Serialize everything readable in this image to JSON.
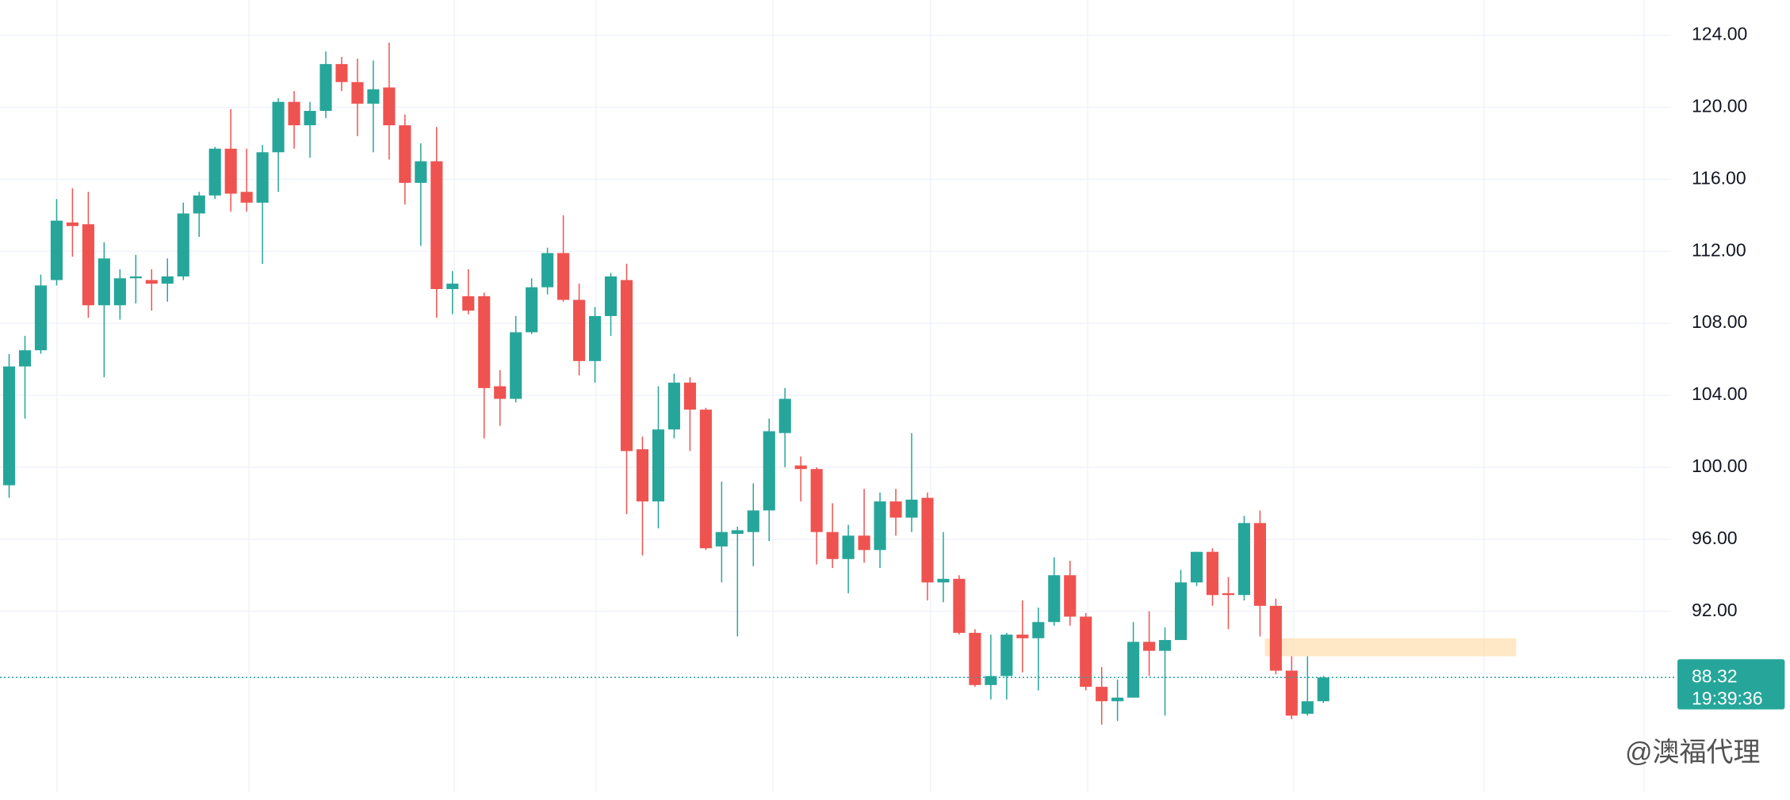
{
  "chart_data": {
    "type": "candlestick",
    "open": [
      99.0,
      105.6,
      106.5,
      110.4,
      113.6,
      113.5,
      109.0,
      109.0,
      110.5,
      110.4,
      110.2,
      110.6,
      114.1,
      115.1,
      117.7,
      115.3,
      114.7,
      117.5,
      120.3,
      119.0,
      119.8,
      122.4,
      121.4,
      120.2,
      121.1,
      119.0,
      115.8,
      117.0,
      109.9,
      109.5,
      109.5,
      104.5,
      103.8,
      107.5,
      110.0,
      111.9,
      109.3,
      105.9,
      108.4,
      110.4,
      101.0,
      98.1,
      102.1,
      104.7,
      103.2,
      95.6,
      96.3,
      96.4,
      97.6,
      101.9,
      100.1,
      99.9,
      96.4,
      94.9,
      96.2,
      95.4,
      98.1,
      97.2,
      98.3,
      93.6,
      93.8,
      90.8,
      87.9,
      88.4,
      90.7,
      90.5,
      91.4,
      94.0,
      91.7,
      87.8,
      87.0,
      87.2,
      90.3,
      89.8,
      90.4,
      93.6,
      95.3,
      93.0,
      92.9,
      96.9,
      92.3,
      88.7,
      86.3,
      87.0
    ],
    "high": [
      106.3,
      107.3,
      110.7,
      114.9,
      115.5,
      115.3,
      112.5,
      111.0,
      111.8,
      111.0,
      111.6,
      114.7,
      115.3,
      117.8,
      119.9,
      117.7,
      117.9,
      120.5,
      120.9,
      120.3,
      123.1,
      122.8,
      122.7,
      122.6,
      123.6,
      119.6,
      118.0,
      118.9,
      110.9,
      111.0,
      109.7,
      105.4,
      108.4,
      110.5,
      112.2,
      114.0,
      110.2,
      108.9,
      110.8,
      111.3,
      101.7,
      104.5,
      105.2,
      105.0,
      103.3,
      99.2,
      96.7,
      99.1,
      102.7,
      104.4,
      100.6,
      100.0,
      98.0,
      96.8,
      98.8,
      98.6,
      98.8,
      101.9,
      98.6,
      96.4,
      94.0,
      91.0,
      90.7,
      90.8,
      92.6,
      92.2,
      95.0,
      94.8,
      91.9,
      88.9,
      88.2,
      91.4,
      92.0,
      91.1,
      94.3,
      95.3,
      95.5,
      93.9,
      97.3,
      97.6,
      92.7,
      89.5,
      89.5,
      88.4
    ],
    "low": [
      98.3,
      102.7,
      106.3,
      110.1,
      111.7,
      108.3,
      105.0,
      108.2,
      109.1,
      108.7,
      109.2,
      110.4,
      112.8,
      114.9,
      114.2,
      114.2,
      111.3,
      115.3,
      117.7,
      117.2,
      119.4,
      120.9,
      118.4,
      117.5,
      117.1,
      114.6,
      112.3,
      108.3,
      108.5,
      108.5,
      101.6,
      102.3,
      103.6,
      107.4,
      109.6,
      109.2,
      105.1,
      104.7,
      107.3,
      97.4,
      95.1,
      96.6,
      101.6,
      100.9,
      95.4,
      93.6,
      90.6,
      94.5,
      95.9,
      100.0,
      98.1,
      94.6,
      94.4,
      93.0,
      94.7,
      94.4,
      96.2,
      96.4,
      92.6,
      92.5,
      90.7,
      87.8,
      87.1,
      87.1,
      88.6,
      87.6,
      91.2,
      91.2,
      87.6,
      85.7,
      85.9,
      87.2,
      88.4,
      86.2,
      90.4,
      93.4,
      92.3,
      91.0,
      92.6,
      90.6,
      88.5,
      86.0,
      86.2,
      86.9
    ],
    "close": [
      105.6,
      106.5,
      110.1,
      113.7,
      113.4,
      109.0,
      111.6,
      110.5,
      110.6,
      110.2,
      110.6,
      114.1,
      115.1,
      117.7,
      115.2,
      114.7,
      117.5,
      120.3,
      119.0,
      119.8,
      122.4,
      121.4,
      120.2,
      121.0,
      119.0,
      115.8,
      117.0,
      109.9,
      110.2,
      108.7,
      104.4,
      103.8,
      107.5,
      110.0,
      111.9,
      109.3,
      105.9,
      108.4,
      110.6,
      100.9,
      98.1,
      102.1,
      104.7,
      103.2,
      95.5,
      96.4,
      96.5,
      97.6,
      102.0,
      103.8,
      99.9,
      96.4,
      94.9,
      96.2,
      95.4,
      98.1,
      97.2,
      98.2,
      93.6,
      93.8,
      90.8,
      87.9,
      88.4,
      90.7,
      90.5,
      91.4,
      94.0,
      91.7,
      87.8,
      87.0,
      87.2,
      90.3,
      89.8,
      90.4,
      93.6,
      95.3,
      92.9,
      92.9,
      96.9,
      92.3,
      88.7,
      86.2,
      87.0,
      88.32
    ],
    "up_color": "#26a69a",
    "down_color": "#ef5350",
    "countdown": "19:39:36",
    "zone": {
      "low": 89.5,
      "high": 90.5,
      "color": "#ffe0b2"
    },
    "ylim": [
      81.6,
      125.96
    ],
    "yticks": [
      {
        "value": 124,
        "label": "124.00"
      },
      {
        "value": 120,
        "label": "120.00"
      },
      {
        "value": 116,
        "label": "116.00"
      },
      {
        "value": 112,
        "label": "112.00"
      },
      {
        "value": 108,
        "label": "108.00"
      },
      {
        "value": 104,
        "label": "104.00"
      },
      {
        "value": 100,
        "label": "100.00"
      },
      {
        "value": 96,
        "label": "96.00"
      },
      {
        "value": 92,
        "label": "92.00"
      }
    ],
    "grid": true,
    "watermark": "@澳福代理"
  }
}
